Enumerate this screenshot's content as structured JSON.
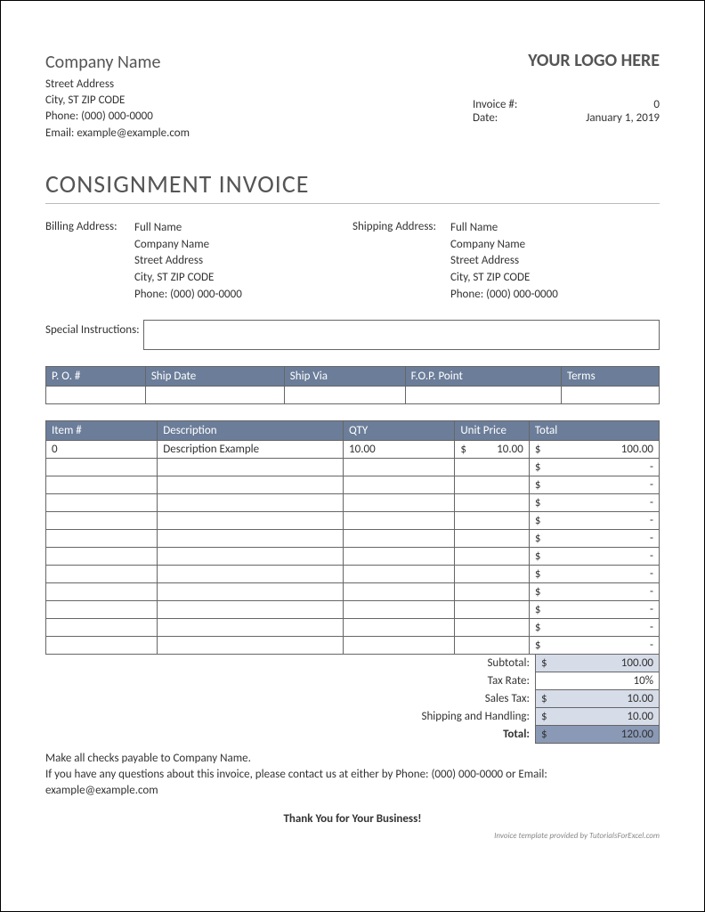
{
  "company": {
    "name": "Company Name",
    "street": "Street Address",
    "city": "City, ST ZIP CODE",
    "phone": "Phone: (000) 000-0000",
    "email": "Email: example@example.com"
  },
  "logo_text": "YOUR LOGO HERE",
  "invoice_meta": {
    "invoice_label": "Invoice #:",
    "invoice_number": "0",
    "date_label": "Date:",
    "date_value": "January 1, 2019"
  },
  "title": "CONSIGNMENT INVOICE",
  "billing": {
    "label": "Billing Address:",
    "name": "Full Name",
    "company": "Company Name",
    "street": "Street Address",
    "city": "City, ST ZIP CODE",
    "phone": "Phone: (000) 000-0000"
  },
  "shipping": {
    "label": "Shipping Address:",
    "name": "Full Name",
    "company": "Company Name",
    "street": "Street Address",
    "city": "City, ST ZIP CODE",
    "phone": "Phone: (000) 000-0000"
  },
  "special_label": "Special Instructions:",
  "po_table": {
    "headers": [
      "P. O. #",
      "Ship Date",
      "Ship Via",
      "F.O.P. Point",
      "Terms"
    ],
    "row": [
      "",
      "",
      "",
      "",
      ""
    ]
  },
  "items_table": {
    "headers": [
      "Item #",
      "Description",
      "QTY",
      "Unit Price",
      "Total"
    ],
    "rows": [
      {
        "item": "0",
        "desc": "Description Example",
        "qty": "10.00",
        "unit_sym": "$",
        "unit": "10.00",
        "tot_sym": "$",
        "total": "100.00"
      },
      {
        "item": "",
        "desc": "",
        "qty": "",
        "unit_sym": "",
        "unit": "",
        "tot_sym": "$",
        "total": "-"
      },
      {
        "item": "",
        "desc": "",
        "qty": "",
        "unit_sym": "",
        "unit": "",
        "tot_sym": "$",
        "total": "-"
      },
      {
        "item": "",
        "desc": "",
        "qty": "",
        "unit_sym": "",
        "unit": "",
        "tot_sym": "$",
        "total": "-"
      },
      {
        "item": "",
        "desc": "",
        "qty": "",
        "unit_sym": "",
        "unit": "",
        "tot_sym": "$",
        "total": "-"
      },
      {
        "item": "",
        "desc": "",
        "qty": "",
        "unit_sym": "",
        "unit": "",
        "tot_sym": "$",
        "total": "-"
      },
      {
        "item": "",
        "desc": "",
        "qty": "",
        "unit_sym": "",
        "unit": "",
        "tot_sym": "$",
        "total": "-"
      },
      {
        "item": "",
        "desc": "",
        "qty": "",
        "unit_sym": "",
        "unit": "",
        "tot_sym": "$",
        "total": "-"
      },
      {
        "item": "",
        "desc": "",
        "qty": "",
        "unit_sym": "",
        "unit": "",
        "tot_sym": "$",
        "total": "-"
      },
      {
        "item": "",
        "desc": "",
        "qty": "",
        "unit_sym": "",
        "unit": "",
        "tot_sym": "$",
        "total": "-"
      },
      {
        "item": "",
        "desc": "",
        "qty": "",
        "unit_sym": "",
        "unit": "",
        "tot_sym": "$",
        "total": "-"
      },
      {
        "item": "",
        "desc": "",
        "qty": "",
        "unit_sym": "",
        "unit": "",
        "tot_sym": "$",
        "total": "-"
      }
    ]
  },
  "summary": {
    "subtotal_label": "Subtotal:",
    "subtotal_sym": "$",
    "subtotal": "100.00",
    "taxrate_label": "Tax Rate:",
    "taxrate": "10%",
    "salestax_label": "Sales Tax:",
    "salestax_sym": "$",
    "salestax": "10.00",
    "shipping_label": "Shipping and Handling:",
    "shipping_sym": "$",
    "shipping": "10.00",
    "total_label": "Total:",
    "total_sym": "$",
    "total": "120.00"
  },
  "footer": {
    "line1": "Make all checks payable to Company Name.",
    "line2": "If you have any questions about this invoice, please contact us at either by Phone: (000) 000-0000 or Email: example@example.com",
    "thanks": "Thank You for Your Business!",
    "credit": "Invoice template provided by TutorialsForExcel.com"
  },
  "colors": {
    "header_bg": "#6b7d99",
    "shade_light": "#d6dce8",
    "shade_dark": "#8a99b5"
  }
}
